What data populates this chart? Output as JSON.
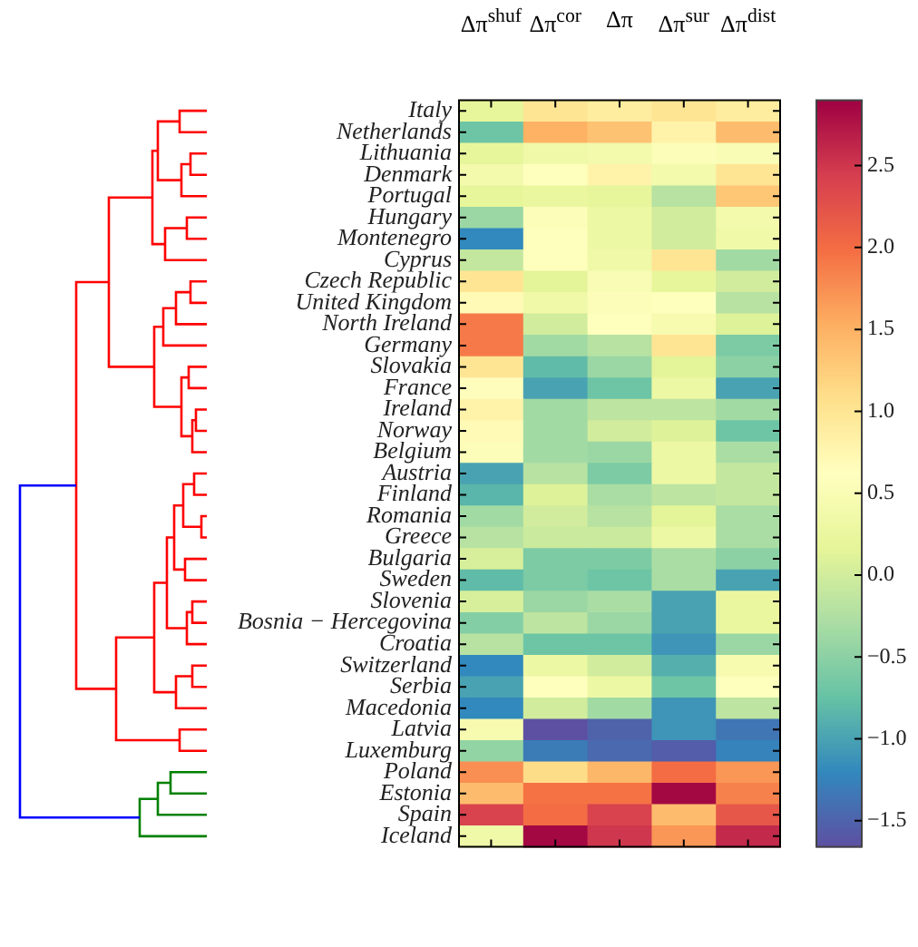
{
  "chart_data": {
    "type": "heatmap",
    "categories": [
      "Δπ$^{shuf}$",
      "Δπ$^{cor}$",
      "Δπ",
      "Δπ$^{sur}$",
      "Δπ$^{dist}$"
    ],
    "y_categories": [
      "Italy",
      "Netherlands",
      "Lithuania",
      "Denmark",
      "Portugal",
      "Hungary",
      "Montenegro",
      "Cyprus",
      "Czech Republic",
      "United Kingdom",
      "North Ireland",
      "Germany",
      "Slovakia",
      "France",
      "Ireland",
      "Norway",
      "Belgium",
      "Austria",
      "Finland",
      "Romania",
      "Greece",
      "Bulgaria",
      "Sweden",
      "Slovenia",
      "Bosnia − Hercegovina",
      "Croatia",
      "Switzerland",
      "Serbia",
      "Macedonia",
      "Latvia",
      "Luxemburg",
      "Poland",
      "Estonia",
      "Spain",
      "Iceland"
    ],
    "cells": [
      [
        0.2,
        1.0,
        0.9,
        1.0,
        0.9
      ],
      [
        -0.7,
        1.5,
        1.35,
        0.8,
        1.4
      ],
      [
        0.2,
        0.35,
        0.4,
        0.55,
        0.5
      ],
      [
        0.4,
        0.6,
        0.8,
        0.4,
        1.0
      ],
      [
        0.2,
        0.25,
        0.2,
        -0.2,
        1.3
      ],
      [
        -0.4,
        0.55,
        0.3,
        0.0,
        0.4
      ],
      [
        -1.2,
        0.6,
        0.3,
        0.0,
        0.35
      ],
      [
        -0.1,
        0.6,
        0.35,
        1.0,
        -0.35
      ],
      [
        1.0,
        0.15,
        0.5,
        0.2,
        0.0
      ],
      [
        0.7,
        0.35,
        0.55,
        0.6,
        -0.2
      ],
      [
        1.9,
        0.0,
        0.6,
        0.45,
        0.1
      ],
      [
        1.9,
        -0.35,
        -0.2,
        1.0,
        -0.6
      ],
      [
        1.0,
        -0.8,
        -0.4,
        0.15,
        -0.5
      ],
      [
        0.65,
        -1.0,
        -0.7,
        0.3,
        -1.0
      ],
      [
        0.8,
        -0.35,
        -0.15,
        -0.15,
        -0.35
      ],
      [
        0.7,
        -0.35,
        0.0,
        0.1,
        -0.7
      ],
      [
        0.55,
        -0.35,
        -0.4,
        0.3,
        -0.3
      ],
      [
        -1.0,
        -0.2,
        -0.6,
        0.3,
        -0.1
      ],
      [
        -0.85,
        0.1,
        -0.3,
        -0.15,
        -0.1
      ],
      [
        -0.35,
        0.0,
        -0.2,
        0.15,
        -0.3
      ],
      [
        -0.2,
        -0.05,
        -0.05,
        0.3,
        -0.3
      ],
      [
        0.05,
        -0.6,
        -0.6,
        -0.3,
        -0.5
      ],
      [
        -0.8,
        -0.6,
        -0.7,
        -0.3,
        -1.0
      ],
      [
        0.05,
        -0.4,
        -0.3,
        -1.0,
        0.25
      ],
      [
        -0.55,
        -0.15,
        -0.4,
        -1.0,
        0.25
      ],
      [
        -0.2,
        -0.7,
        -0.7,
        -1.1,
        -0.4
      ],
      [
        -1.2,
        0.3,
        0.0,
        -0.9,
        0.45
      ],
      [
        -1.0,
        0.6,
        0.3,
        -0.7,
        0.6
      ],
      [
        -1.2,
        0.0,
        -0.35,
        -1.1,
        -0.15
      ],
      [
        0.45,
        -1.65,
        -1.5,
        -1.1,
        -1.35
      ],
      [
        -0.45,
        -1.3,
        -1.45,
        -1.55,
        -1.25
      ],
      [
        1.75,
        1.1,
        1.45,
        2.0,
        1.7
      ],
      [
        1.4,
        1.95,
        1.95,
        2.85,
        1.85
      ],
      [
        2.4,
        2.0,
        2.4,
        1.4,
        2.2
      ],
      [
        0.35,
        2.85,
        2.5,
        1.7,
        2.6
      ]
    ],
    "clim": [
      -1.66,
      2.9
    ],
    "cticks": [
      {
        "value": -1.5,
        "label": "−1.5"
      },
      {
        "value": -1.0,
        "label": "−1.0"
      },
      {
        "value": -0.5,
        "label": "−0.5"
      },
      {
        "value": 0,
        "label": "0.0"
      },
      0.5,
      {
        "value": 1.0,
        "label": "1.0"
      },
      1.5,
      {
        "value": 2.0,
        "label": "2.0"
      },
      2.5
    ]
  }
}
